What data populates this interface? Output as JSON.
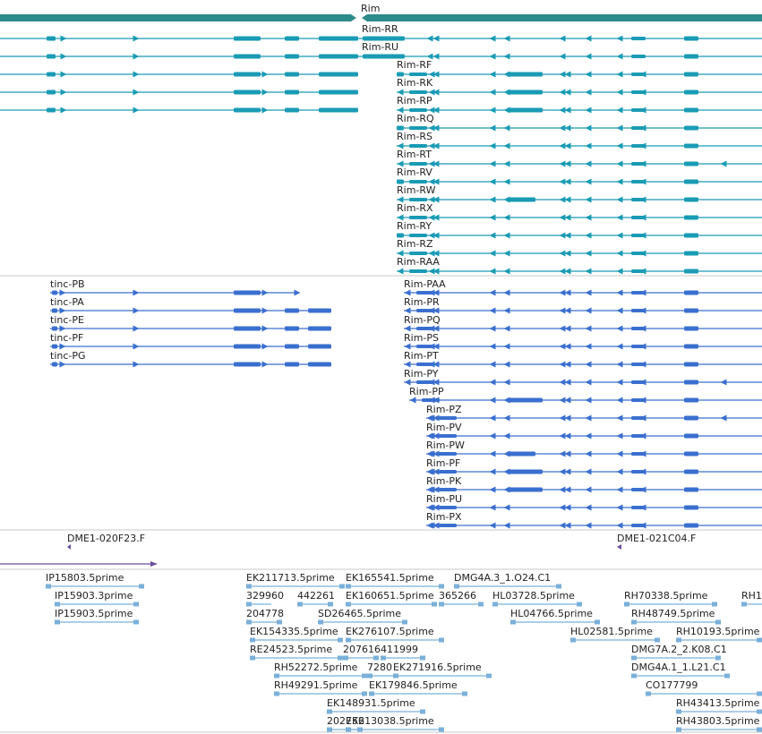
{
  "colors": {
    "gene": "#2e8b8b",
    "teal": "#1a9bb5",
    "blue": "#3a6fcf",
    "purple": "#6a4fa0",
    "est": "#7ab0da",
    "sep": "#c8c8c8",
    "text": "#222222"
  },
  "gene": {
    "name": "Rim"
  },
  "rim_r_left": [
    {
      "name": "Rim-RR"
    },
    {
      "name": "Rim-RU"
    }
  ],
  "rim_r_right": [
    {
      "name": "Rim-RF"
    },
    {
      "name": "Rim-RK"
    },
    {
      "name": "Rim-RP"
    },
    {
      "name": "Rim-RQ"
    },
    {
      "name": "Rim-RS"
    },
    {
      "name": "Rim-RT"
    },
    {
      "name": "Rim-RV"
    },
    {
      "name": "Rim-RW"
    },
    {
      "name": "Rim-RX"
    },
    {
      "name": "Rim-RY"
    },
    {
      "name": "Rim-RZ"
    },
    {
      "name": "Rim-RAA"
    }
  ],
  "tinc": [
    {
      "name": "tinc-PB"
    },
    {
      "name": "tinc-PA"
    },
    {
      "name": "tinc-PE"
    },
    {
      "name": "tinc-PF"
    },
    {
      "name": "tinc-PG"
    }
  ],
  "rim_p": [
    {
      "name": "Rim-PAA"
    },
    {
      "name": "Rim-PR"
    },
    {
      "name": "Rim-PQ"
    },
    {
      "name": "Rim-PS"
    },
    {
      "name": "Rim-PT"
    },
    {
      "name": "Rim-PY"
    },
    {
      "name": "Rim-PP"
    },
    {
      "name": "Rim-PZ"
    },
    {
      "name": "Rim-PV"
    },
    {
      "name": "Rim-PW"
    },
    {
      "name": "Rim-PF"
    },
    {
      "name": "Rim-PK"
    },
    {
      "name": "Rim-PU"
    },
    {
      "name": "Rim-PX"
    }
  ],
  "clones": [
    {
      "name": "DME1-020F23.F"
    },
    {
      "name": "DME1-021C04.F"
    }
  ],
  "ests": [
    "IP15803.5prime",
    "IP15903.3prime",
    "IP15903.5prime",
    "EK211713.5prime",
    "EK165541.5prime",
    "DMG4A.3_1.O24.C1",
    "329960",
    "442261",
    "EK160651.5prime",
    "365266",
    "HL03728.5prime",
    "RH70338.5prime",
    "RH1",
    "204778",
    "SD26465.5prime",
    "HL04766.5prime",
    "RH48749.5prime",
    "EK154335.5prime",
    "EK276107.5prime",
    "HL02581.5prime",
    "RH10193.5prime",
    "RE24523.5prime",
    "207616",
    "411999",
    "DMG7A.2_2.K08.C1",
    "RH52272.5prime",
    "7280",
    "EK271916.5prime",
    "DMG4A.1_1.L21.C1",
    "RH49291.5prime",
    "EK179846.5prime",
    "CO177799",
    "EK148931.5prime",
    "RH43413.5prime",
    "202756",
    "EK213038.5prime",
    "RH43803.5prime"
  ]
}
